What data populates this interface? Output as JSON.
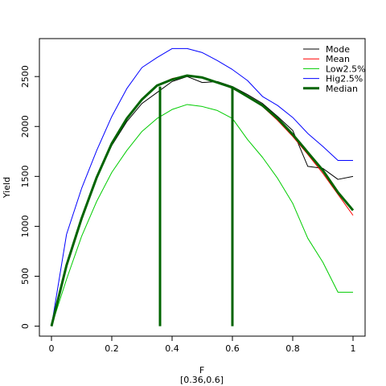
{
  "chart_data": {
    "type": "line",
    "xlabel": "F",
    "xlabel2": "[0.36,0.6]",
    "ylabel": "Yield",
    "xlim": [
      -0.04,
      1.04
    ],
    "ylim": [
      -100,
      2880
    ],
    "xticks": [
      0,
      0.2,
      0.4,
      0.6,
      0.8,
      1
    ],
    "yticks": [
      0,
      500,
      1000,
      1500,
      2000,
      2500
    ],
    "x": [
      0,
      0.05,
      0.1,
      0.15,
      0.2,
      0.25,
      0.3,
      0.35,
      0.4,
      0.45,
      0.5,
      0.55,
      0.6,
      0.65,
      0.7,
      0.75,
      0.8,
      0.85,
      0.9,
      0.95,
      1.0
    ],
    "series": [
      {
        "name": "Mode",
        "color": "#000000",
        "width": 1,
        "values": [
          0,
          600,
          1060,
          1480,
          1810,
          2050,
          2230,
          2340,
          2450,
          2500,
          2440,
          2450,
          2400,
          2320,
          2230,
          2100,
          1960,
          1600,
          1580,
          1470,
          1500
        ]
      },
      {
        "name": "Mean",
        "color": "#ff0000",
        "width": 1,
        "values": [
          0,
          590,
          1060,
          1480,
          1830,
          2080,
          2280,
          2410,
          2480,
          2510,
          2490,
          2440,
          2380,
          2300,
          2200,
          2060,
          1900,
          1720,
          1530,
          1320,
          1110
        ]
      },
      {
        "name": "Low2.5%",
        "color": "#00cc00",
        "width": 1,
        "values": [
          0,
          470,
          900,
          1250,
          1540,
          1760,
          1950,
          2080,
          2170,
          2220,
          2200,
          2160,
          2080,
          1870,
          1690,
          1480,
          1230,
          880,
          640,
          340,
          340
        ]
      },
      {
        "name": "Hig2.5%",
        "color": "#0000ff",
        "width": 1,
        "values": [
          0,
          920,
          1380,
          1760,
          2100,
          2380,
          2590,
          2690,
          2780,
          2780,
          2740,
          2660,
          2570,
          2460,
          2300,
          2210,
          2090,
          1930,
          1800,
          1660,
          1660
        ]
      },
      {
        "name": "Median",
        "color": "#006400",
        "width": 3,
        "values": [
          0,
          610,
          1080,
          1490,
          1830,
          2080,
          2270,
          2410,
          2470,
          2510,
          2490,
          2440,
          2390,
          2300,
          2210,
          2080,
          1920,
          1740,
          1560,
          1340,
          1160
        ]
      }
    ],
    "vlines": [
      0.36,
      0.6
    ],
    "legend_position": "top-right"
  }
}
